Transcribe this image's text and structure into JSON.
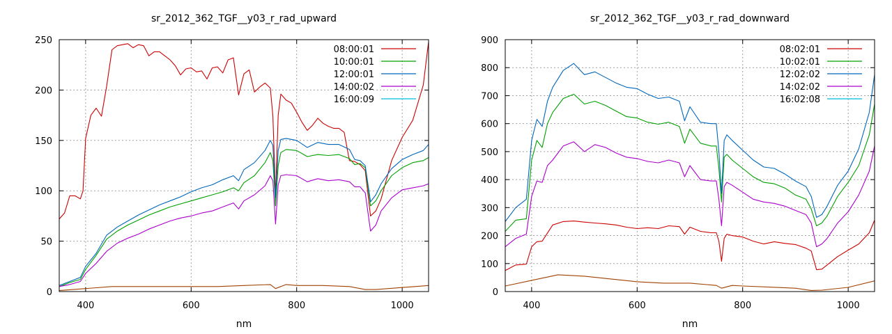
{
  "chart_data": [
    {
      "type": "line",
      "title": "sr_2012_362_TGF__y03_r_rad_upward",
      "xlabel": "nm",
      "ylabel": "",
      "xlim": [
        350,
        1050
      ],
      "ylim": [
        0,
        250
      ],
      "xticks": [
        400,
        600,
        800,
        1000
      ],
      "yticks": [
        0,
        50,
        100,
        150,
        200,
        250
      ],
      "grid": true,
      "legend_position": "top-right",
      "series": [
        {
          "name": "08:00:01",
          "color": "#cc0000",
          "x": [
            350,
            360,
            370,
            380,
            390,
            395,
            400,
            410,
            420,
            430,
            440,
            450,
            460,
            470,
            480,
            490,
            500,
            510,
            520,
            530,
            540,
            550,
            560,
            570,
            580,
            590,
            600,
            610,
            620,
            630,
            640,
            650,
            660,
            670,
            680,
            690,
            700,
            710,
            720,
            730,
            740,
            750,
            755,
            760,
            765,
            770,
            780,
            790,
            800,
            810,
            820,
            830,
            840,
            850,
            860,
            870,
            880,
            890,
            900,
            910,
            920,
            930,
            940,
            950,
            960,
            980,
            1000,
            1020,
            1040,
            1050
          ],
          "y": [
            72,
            78,
            95,
            95,
            92,
            100,
            152,
            175,
            182,
            174,
            204,
            240,
            244,
            245,
            246,
            242,
            245,
            244,
            234,
            238,
            238,
            234,
            230,
            224,
            215,
            221,
            222,
            218,
            219,
            211,
            222,
            223,
            217,
            230,
            232,
            195,
            216,
            220,
            198,
            203,
            207,
            202,
            174,
            95,
            175,
            196,
            190,
            187,
            178,
            168,
            160,
            165,
            172,
            167,
            164,
            162,
            162,
            158,
            130,
            129,
            126,
            120,
            75,
            80,
            92,
            130,
            153,
            170,
            205,
            248
          ]
        },
        {
          "name": "10:00:01",
          "color": "#00a000",
          "x": [
            350,
            370,
            390,
            400,
            420,
            440,
            460,
            480,
            500,
            520,
            540,
            560,
            580,
            600,
            620,
            640,
            660,
            680,
            690,
            700,
            720,
            740,
            750,
            755,
            760,
            765,
            770,
            780,
            800,
            820,
            840,
            860,
            880,
            900,
            910,
            920,
            930,
            940,
            950,
            960,
            980,
            1000,
            1020,
            1040,
            1050
          ],
          "y": [
            5,
            9,
            12,
            22,
            36,
            52,
            60,
            66,
            71,
            76,
            80,
            84,
            87,
            90,
            93,
            96,
            99,
            103,
            100,
            108,
            115,
            128,
            138,
            130,
            85,
            125,
            138,
            141,
            140,
            134,
            136,
            135,
            136,
            132,
            126,
            127,
            123,
            85,
            90,
            100,
            115,
            123,
            128,
            130,
            133
          ]
        },
        {
          "name": "12:00:01",
          "color": "#0066bb",
          "x": [
            350,
            370,
            390,
            400,
            420,
            440,
            460,
            480,
            500,
            520,
            540,
            560,
            580,
            600,
            620,
            640,
            660,
            680,
            690,
            700,
            720,
            740,
            750,
            755,
            760,
            765,
            770,
            780,
            800,
            820,
            840,
            860,
            880,
            900,
            910,
            920,
            930,
            940,
            950,
            960,
            980,
            1000,
            1020,
            1040,
            1050
          ],
          "y": [
            6,
            10,
            14,
            25,
            38,
            56,
            64,
            70,
            76,
            81,
            86,
            90,
            94,
            99,
            103,
            106,
            111,
            115,
            110,
            121,
            128,
            140,
            150,
            145,
            93,
            140,
            151,
            152,
            150,
            143,
            148,
            146,
            146,
            141,
            131,
            130,
            125,
            89,
            96,
            107,
            122,
            131,
            136,
            140,
            146
          ]
        },
        {
          "name": "14:00:02",
          "color": "#aa00cc",
          "x": [
            350,
            370,
            390,
            400,
            420,
            440,
            460,
            480,
            500,
            520,
            540,
            560,
            580,
            600,
            620,
            640,
            660,
            680,
            690,
            700,
            720,
            740,
            750,
            755,
            760,
            765,
            770,
            780,
            800,
            820,
            840,
            860,
            880,
            900,
            910,
            920,
            930,
            940,
            950,
            960,
            980,
            1000,
            1020,
            1040,
            1050
          ],
          "y": [
            5,
            7,
            10,
            18,
            28,
            40,
            48,
            53,
            57,
            62,
            66,
            70,
            73,
            75,
            78,
            80,
            84,
            88,
            82,
            90,
            96,
            105,
            115,
            110,
            67,
            106,
            115,
            116,
            115,
            109,
            112,
            110,
            111,
            109,
            104,
            104,
            98,
            60,
            66,
            80,
            93,
            101,
            103,
            105,
            107
          ]
        },
        {
          "name": "16:00:09",
          "color": "#00bbdd",
          "x": [],
          "y": []
        },
        {
          "name": "",
          "color": "#a04000",
          "x": [
            350,
            400,
            450,
            500,
            550,
            600,
            650,
            700,
            750,
            760,
            780,
            800,
            850,
            900,
            930,
            950,
            1000,
            1050
          ],
          "y": [
            1,
            3,
            5,
            5,
            5,
            5,
            5,
            6,
            7,
            3,
            7,
            6,
            6,
            5,
            2,
            2,
            4,
            6
          ]
        }
      ]
    },
    {
      "type": "line",
      "title": "sr_2012_362_TGF__y03_r_rad_downward",
      "xlabel": "nm",
      "ylabel": "",
      "xlim": [
        350,
        1050
      ],
      "ylim": [
        0,
        900
      ],
      "xticks": [
        400,
        600,
        800,
        1000
      ],
      "yticks": [
        0,
        100,
        200,
        300,
        400,
        500,
        600,
        700,
        800,
        900
      ],
      "grid": true,
      "legend_position": "top-right",
      "series": [
        {
          "name": "08:02:01",
          "color": "#cc0000",
          "x": [
            350,
            370,
            390,
            400,
            410,
            420,
            440,
            460,
            480,
            500,
            520,
            540,
            560,
            580,
            600,
            620,
            640,
            660,
            680,
            690,
            700,
            720,
            740,
            750,
            755,
            760,
            765,
            770,
            780,
            800,
            820,
            840,
            860,
            880,
            900,
            920,
            930,
            940,
            950,
            960,
            980,
            1000,
            1020,
            1040,
            1050
          ],
          "y": [
            75,
            95,
            98,
            160,
            178,
            180,
            238,
            250,
            252,
            248,
            245,
            242,
            238,
            230,
            225,
            228,
            225,
            235,
            232,
            205,
            230,
            215,
            210,
            210,
            180,
            108,
            190,
            205,
            200,
            195,
            180,
            170,
            178,
            172,
            168,
            155,
            145,
            78,
            80,
            95,
            125,
            148,
            170,
            210,
            255
          ]
        },
        {
          "name": "10:02:01",
          "color": "#00a000",
          "x": [
            350,
            370,
            390,
            400,
            410,
            420,
            430,
            440,
            460,
            480,
            500,
            520,
            540,
            560,
            580,
            600,
            620,
            640,
            660,
            680,
            690,
            700,
            720,
            740,
            750,
            755,
            760,
            765,
            770,
            780,
            800,
            820,
            840,
            860,
            880,
            900,
            920,
            930,
            940,
            950,
            960,
            980,
            1000,
            1020,
            1040,
            1050
          ],
          "y": [
            215,
            255,
            260,
            470,
            540,
            515,
            600,
            640,
            690,
            705,
            670,
            680,
            665,
            645,
            625,
            620,
            605,
            598,
            605,
            590,
            530,
            580,
            530,
            520,
            520,
            440,
            320,
            480,
            490,
            470,
            440,
            410,
            390,
            385,
            370,
            345,
            330,
            295,
            235,
            245,
            270,
            340,
            390,
            450,
            560,
            670
          ]
        },
        {
          "name": "12:02:02",
          "color": "#0066bb",
          "x": [
            350,
            370,
            390,
            400,
            410,
            420,
            430,
            440,
            460,
            480,
            500,
            520,
            540,
            560,
            580,
            600,
            620,
            640,
            660,
            680,
            690,
            700,
            720,
            740,
            750,
            755,
            760,
            765,
            770,
            780,
            800,
            820,
            840,
            860,
            880,
            900,
            920,
            930,
            940,
            950,
            960,
            980,
            1000,
            1020,
            1040,
            1050
          ],
          "y": [
            250,
            300,
            330,
            540,
            615,
            590,
            680,
            730,
            790,
            815,
            775,
            785,
            765,
            745,
            730,
            725,
            705,
            690,
            695,
            680,
            610,
            660,
            605,
            600,
            600,
            500,
            350,
            540,
            560,
            540,
            505,
            470,
            445,
            440,
            420,
            395,
            375,
            340,
            265,
            275,
            305,
            380,
            430,
            510,
            640,
            775
          ]
        },
        {
          "name": "14:02:02",
          "color": "#aa00cc",
          "x": [
            350,
            370,
            390,
            400,
            410,
            420,
            430,
            440,
            460,
            480,
            500,
            520,
            540,
            560,
            580,
            600,
            620,
            640,
            660,
            680,
            690,
            700,
            720,
            740,
            750,
            755,
            760,
            765,
            770,
            780,
            800,
            820,
            840,
            860,
            880,
            900,
            920,
            930,
            940,
            950,
            960,
            980,
            1000,
            1020,
            1040,
            1050
          ],
          "y": [
            160,
            190,
            205,
            340,
            395,
            390,
            450,
            470,
            520,
            535,
            500,
            525,
            515,
            495,
            480,
            475,
            465,
            460,
            470,
            460,
            410,
            450,
            400,
            395,
            395,
            330,
            235,
            375,
            390,
            380,
            355,
            330,
            320,
            315,
            305,
            290,
            275,
            245,
            160,
            170,
            190,
            245,
            285,
            345,
            430,
            520
          ]
        },
        {
          "name": "16:02:08",
          "color": "#00bbdd",
          "x": [],
          "y": []
        },
        {
          "name": "",
          "color": "#a04000",
          "x": [
            350,
            400,
            450,
            500,
            550,
            600,
            650,
            700,
            750,
            760,
            780,
            800,
            850,
            900,
            930,
            950,
            1000,
            1050
          ],
          "y": [
            20,
            40,
            60,
            55,
            45,
            35,
            30,
            30,
            22,
            12,
            22,
            20,
            16,
            12,
            4,
            5,
            15,
            38
          ]
        }
      ]
    }
  ]
}
